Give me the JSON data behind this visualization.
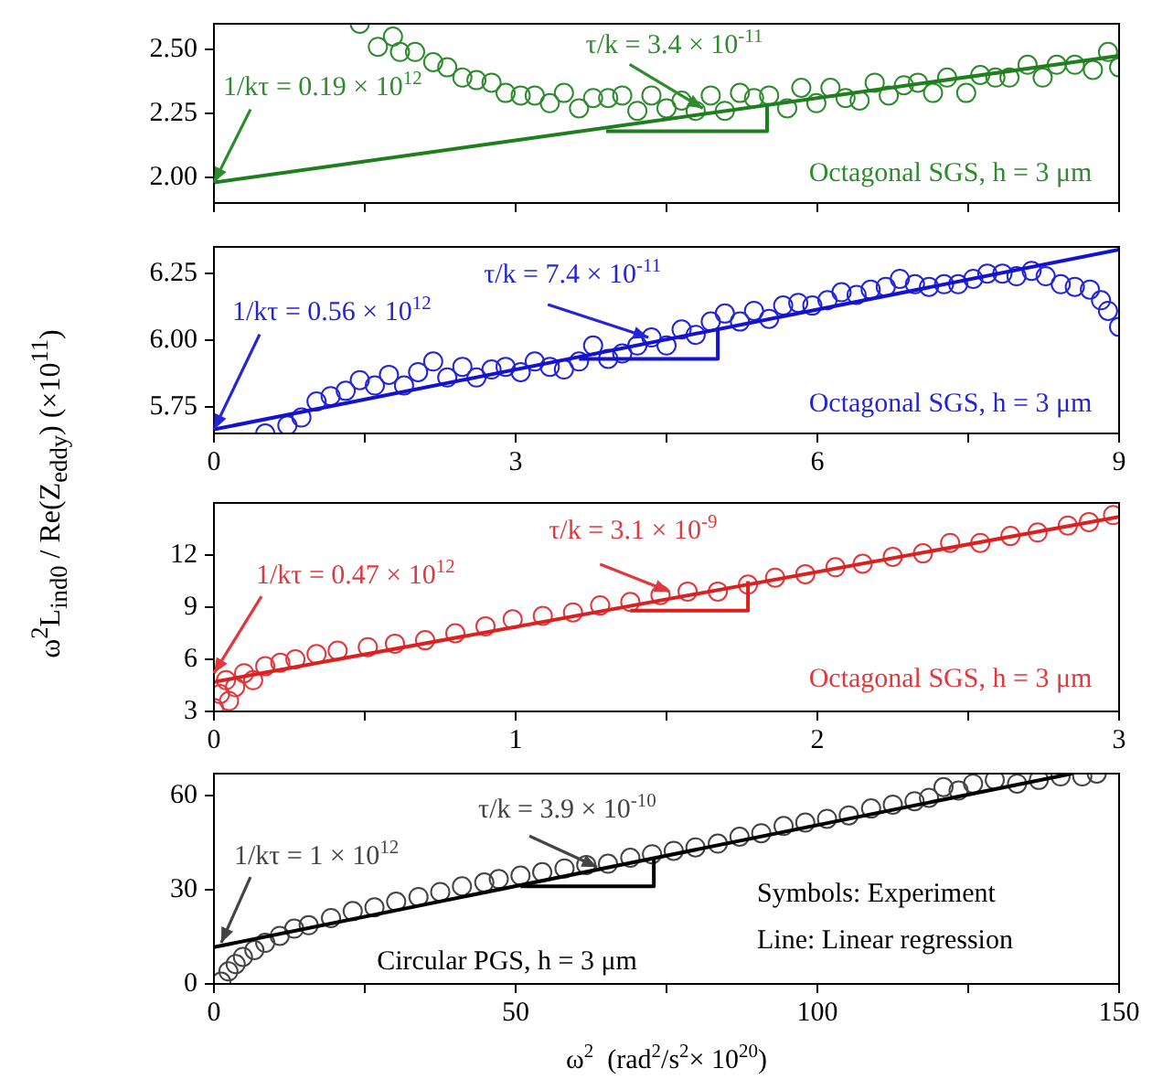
{
  "chart_data": [
    {
      "type": "scatter",
      "xlim": [
        0,
        9
      ],
      "xticks": [
        0,
        {
          "value": 1.5,
          "label": null
        },
        3,
        {
          "value": 4.5,
          "label": null
        },
        6,
        {
          "value": 7.5,
          "label": null
        },
        9
      ],
      "ylim": [
        1.9,
        2.6
      ],
      "yticks": [
        {
          "value": 2,
          "label": "2.00"
        },
        2.25,
        {
          "value": 2.5,
          "label": "2.50"
        }
      ],
      "tick_labels": "y",
      "series": [
        {
          "type": "scatter",
          "marker": "circle",
          "color": "#2e8b2e",
          "x": [
            1.45,
            1.63,
            1.78,
            1.85,
            2.0,
            2.18,
            2.32,
            2.47,
            2.61,
            2.76,
            2.9,
            3.05,
            3.19,
            3.34,
            3.48,
            3.63,
            3.77,
            3.92,
            4.06,
            4.21,
            4.35,
            4.5,
            4.65,
            4.79,
            4.94,
            5.08,
            5.23,
            5.37,
            5.52,
            5.7,
            5.84,
            5.99,
            6.13,
            6.28,
            6.42,
            6.57,
            6.71,
            6.86,
            7.0,
            7.15,
            7.29,
            7.48,
            7.62,
            7.77,
            7.91,
            8.09,
            8.24,
            8.38,
            8.56,
            8.74,
            8.89,
            9.0
          ],
          "values": [
            2.6,
            2.51,
            2.55,
            2.49,
            2.49,
            2.45,
            2.43,
            2.39,
            2.38,
            2.37,
            2.33,
            2.32,
            2.32,
            2.29,
            2.33,
            2.27,
            2.31,
            2.31,
            2.32,
            2.26,
            2.32,
            2.27,
            2.3,
            2.26,
            2.32,
            2.26,
            2.33,
            2.31,
            2.32,
            2.27,
            2.35,
            2.29,
            2.35,
            2.31,
            2.3,
            2.37,
            2.32,
            2.36,
            2.37,
            2.33,
            2.39,
            2.33,
            2.4,
            2.39,
            2.39,
            2.44,
            2.39,
            2.44,
            2.44,
            2.42,
            2.49,
            2.43
          ]
        },
        {
          "type": "line",
          "marker": "none",
          "color": "#1f7f1f",
          "x": [
            0,
            9
          ],
          "values": [
            1.98,
            2.475
          ]
        },
        {
          "type": "line",
          "marker": "none",
          "color": "#1f7f1f",
          "x": [
            3.9,
            5.5,
            5.5
          ],
          "values": [
            2.18,
            2.18,
            2.29
          ]
        }
      ],
      "annotations": [
        {
          "text": "1/kτ = 0.19 × 10$^{12}$",
          "x": 0,
          "y": 1.98
        },
        {
          "text": "τ/k = 3.4 × 10$^{-11}$",
          "x": 4.86,
          "y": 2.27
        },
        "Octagonal SGS, h = 3 μm"
      ]
    },
    {
      "type": "scatter",
      "ylabel": "ω$^{2}$L$_{ind0}$ / Re(Z$_{eddy}$) (×10$^{11}$)",
      "xlim": [
        0,
        9
      ],
      "xticks": [
        0,
        {
          "value": 1.5,
          "label": null
        },
        3,
        {
          "value": 4.5,
          "label": null
        },
        6,
        {
          "value": 7.5,
          "label": null
        },
        9
      ],
      "ylim": [
        5.65,
        6.35
      ],
      "yticks": [
        5.75,
        {
          "value": 6,
          "label": "6.00"
        },
        6.25
      ],
      "series": [
        {
          "type": "scatter",
          "marker": "circle",
          "color": "#2424d8",
          "x": [
            0.51,
            0.73,
            0.87,
            1.02,
            1.16,
            1.31,
            1.45,
            1.6,
            1.74,
            1.89,
            2.03,
            2.18,
            2.32,
            2.47,
            2.61,
            2.76,
            2.9,
            3.05,
            3.19,
            3.34,
            3.48,
            3.63,
            3.77,
            3.92,
            4.06,
            4.21,
            4.35,
            4.5,
            4.65,
            4.79,
            4.94,
            5.08,
            5.23,
            5.37,
            5.52,
            5.66,
            5.81,
            5.95,
            6.1,
            6.24,
            6.39,
            6.53,
            6.68,
            6.82,
            6.97,
            7.11,
            7.26,
            7.4,
            7.55,
            7.69,
            7.84,
            7.98,
            8.13,
            8.27,
            8.42,
            8.56,
            8.71,
            8.82,
            8.89,
            9.0
          ],
          "values": [
            5.65,
            5.68,
            5.71,
            5.77,
            5.79,
            5.81,
            5.85,
            5.83,
            5.87,
            5.83,
            5.88,
            5.92,
            5.86,
            5.9,
            5.86,
            5.89,
            5.9,
            5.88,
            5.92,
            5.9,
            5.89,
            5.92,
            5.98,
            5.93,
            5.95,
            5.98,
            6.01,
            5.98,
            6.04,
            6.02,
            6.07,
            6.1,
            6.07,
            6.11,
            6.08,
            6.13,
            6.14,
            6.13,
            6.15,
            6.18,
            6.17,
            6.19,
            6.2,
            6.23,
            6.21,
            6.2,
            6.21,
            6.21,
            6.23,
            6.25,
            6.25,
            6.24,
            6.26,
            6.24,
            6.21,
            6.2,
            6.19,
            6.15,
            6.11,
            6.05
          ]
        },
        {
          "type": "line",
          "marker": "none",
          "color": "#1212d0",
          "x": [
            0,
            9
          ],
          "values": [
            5.665,
            6.34
          ]
        },
        {
          "type": "line",
          "marker": "none",
          "color": "#1212d0",
          "x": [
            3.63,
            5.01,
            5.01
          ],
          "values": [
            5.93,
            5.93,
            6.04
          ]
        }
      ],
      "annotations": [
        {
          "text": "1/kτ = 0.56 × 10$^{12}$",
          "x": 0,
          "y": 5.665
        },
        {
          "text": "τ/k = 7.4 × 10$^{-11}$",
          "x": 4.32,
          "y": 6.01
        },
        "Octagonal SGS, h = 3 μm"
      ]
    },
    {
      "type": "scatter",
      "xlim": [
        0,
        3
      ],
      "xticks": [
        0,
        {
          "value": 0.5,
          "label": null
        },
        1,
        {
          "value": 1.5,
          "label": null
        },
        2,
        {
          "value": 2.5,
          "label": null
        },
        3
      ],
      "ylim": [
        3,
        15
      ],
      "yticks": [
        3,
        6,
        9,
        12
      ],
      "series": [
        {
          "type": "scatter",
          "marker": "circle",
          "color": "#e0383c",
          "x": [
            0,
            0.02,
            0.04,
            0.05,
            0.07,
            0.1,
            0.13,
            0.17,
            0.22,
            0.27,
            0.34,
            0.41,
            0.51,
            0.6,
            0.7,
            0.8,
            0.9,
            0.99,
            1.09,
            1.19,
            1.28,
            1.38,
            1.48,
            1.57,
            1.67,
            1.77,
            1.86,
            1.96,
            2.06,
            2.15,
            2.25,
            2.35,
            2.44,
            2.54,
            2.64,
            2.73,
            2.83,
            2.9,
            2.98
          ],
          "values": [
            3.2,
            4.0,
            4.8,
            3.6,
            4.4,
            5.2,
            4.8,
            5.6,
            5.8,
            6.0,
            6.3,
            6.5,
            6.7,
            6.9,
            7.1,
            7.5,
            7.9,
            8.3,
            8.5,
            8.7,
            9.1,
            9.3,
            9.7,
            9.9,
            9.9,
            10.3,
            10.7,
            10.9,
            11.3,
            11.5,
            11.9,
            12.1,
            12.7,
            12.7,
            13.1,
            13.3,
            13.7,
            13.9,
            14.3
          ]
        },
        {
          "type": "line",
          "marker": "none",
          "color": "#dc2020",
          "x": [
            0,
            3
          ],
          "values": [
            4.7,
            14.2
          ]
        },
        {
          "type": "line",
          "marker": "none",
          "color": "#dc2020",
          "x": [
            1.38,
            1.77,
            1.77
          ],
          "values": [
            8.8,
            8.8,
            10.5
          ]
        }
      ],
      "annotations": [
        {
          "text": "1/kτ = 0.47 × 10$^{12}$",
          "x": 0,
          "y": 5.2
        },
        {
          "text": "τ/k = 3.1 × 10$^{-9}$",
          "x": 1.51,
          "y": 9.9
        },
        "Octagonal SGS, h = 3 μm"
      ]
    },
    {
      "type": "scatter",
      "xlabel": "ω$^{2}$  (rad$^{2}$/s$^{2}$× 10$^{20}$)",
      "xlim": [
        0,
        150
      ],
      "xticks": [
        0,
        {
          "value": 25,
          "label": null
        },
        50,
        {
          "value": 75,
          "label": null
        },
        100,
        {
          "value": 125,
          "label": null
        },
        150
      ],
      "ylim": [
        0,
        67
      ],
      "yticks": [
        0,
        30,
        60
      ],
      "series": [
        {
          "type": "scatter",
          "marker": "circle",
          "color": "#444444",
          "x": [
            1.2,
            2.4,
            3.6,
            4.8,
            6.7,
            8.5,
            10.9,
            13.3,
            15.7,
            19.4,
            23,
            26.6,
            30.2,
            33.9,
            37.5,
            41.1,
            44.8,
            47.2,
            50.8,
            54.4,
            58.1,
            61.7,
            65.3,
            69,
            72.6,
            76.2,
            79.8,
            83.5,
            87.1,
            90.7,
            94.4,
            98,
            101.6,
            105.2,
            108.9,
            112.5,
            116.1,
            118.5,
            120.9,
            123.4,
            125.8,
            129.4,
            133.1,
            136.7,
            140.3,
            143.9,
            146.3
          ],
          "values": [
            0.7,
            4,
            6.3,
            8.6,
            10.8,
            13.1,
            15.3,
            17.6,
            18.7,
            21,
            23.2,
            24.4,
            26.2,
            27.7,
            29.3,
            31.1,
            32.3,
            33.4,
            34.5,
            35.6,
            36.8,
            37.9,
            38.3,
            40.2,
            41.3,
            42.4,
            43.5,
            44.7,
            46.9,
            48,
            50.3,
            51.4,
            52.6,
            53.7,
            55.9,
            57.1,
            58.2,
            59.3,
            62.7,
            61.6,
            63.8,
            65,
            63.8,
            65,
            66.1,
            66.1,
            67
          ]
        },
        {
          "type": "line",
          "marker": "none",
          "color": "#000000",
          "x": [
            0,
            142.2
          ],
          "values": [
            11.7,
            67
          ]
        },
        {
          "type": "line",
          "marker": "none",
          "color": "#000000",
          "x": [
            50.8,
            72.9,
            72.9
          ],
          "values": [
            31.1,
            31.1,
            39.7
          ]
        }
      ],
      "annotations": [
        {
          "text": "1/kτ = 1 × 10$^{12}$",
          "x": 1.2,
          "y": 13.1
        },
        {
          "text": "τ/k = 3.9 × 10$^{-10}$",
          "x": 63.5,
          "y": 37.2
        },
        "Symbols: Experiment",
        "Line: Linear regression",
        "Circular PGS, h = 3 μm"
      ]
    }
  ]
}
